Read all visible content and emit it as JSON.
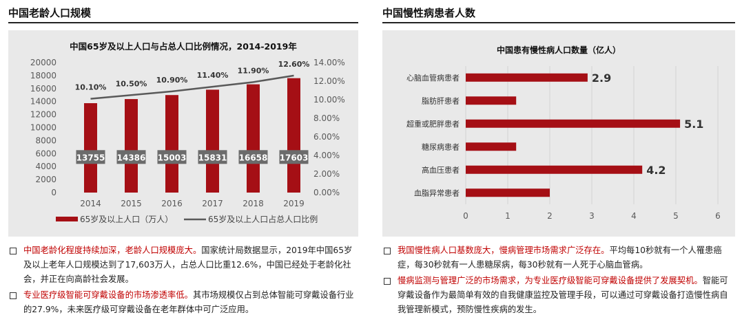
{
  "left": {
    "section_title": "中国老龄人口规模",
    "bullets": [
      {
        "highlight": "中国老龄化程度持续加深，老龄人口规模庞大。",
        "text": "国家统计局数据显示，2019年中国65岁及以上老年人口规模达到了17,603万人，占总人口比重12.6%，中国已经处于老龄化社会，并正在向高龄社会发展。"
      },
      {
        "highlight": "专业医疗级智能可穿戴设备的市场渗透率低。",
        "text": "其市场规模仅占到总体智能可穿戴设备行业的27.9%，未来医疗级可穿戴设备在老年群体中可广泛应用。"
      }
    ]
  },
  "right": {
    "section_title": "中国慢性病患者人数",
    "bullets": [
      {
        "highlight": "我国慢性病人口基数庞大，慢病管理市场需求广泛存在。",
        "text": "平均每10秒就有一个人罹患癌症，每30秒就有一人患糖尿病，每30秒就有一人死于心脑血管病。"
      },
      {
        "highlight": "慢病监测与管理广泛的市场需求，为专业医疗级智能可穿戴设备提供了发展契机。",
        "text": "智能可穿戴设备作为最简单有效的自我健康监控及管理手段，可以通过可穿戴设备打造慢性病自我管理新模式，预防慢性疾病的发生。"
      }
    ]
  },
  "colors": {
    "bar": "#a50f15",
    "line": "#595959",
    "label_bg": "#6b6b6b",
    "panel_bg": "#e9e9e9",
    "highlight": "#c00000"
  },
  "chart_data": [
    {
      "type": "bar",
      "title": "中国65岁及以上人口与占总人口比例情况，2014-2019年",
      "categories": [
        "2014",
        "2015",
        "2016",
        "2017",
        "2018",
        "2019"
      ],
      "series": [
        {
          "name": "65岁及以上人口（万人）",
          "type": "bar",
          "axis": "left",
          "values": [
            13755,
            14386,
            15003,
            15831,
            16658,
            17603
          ]
        },
        {
          "name": "65岁及以上人口占总人口比例",
          "type": "line",
          "axis": "right",
          "values": [
            10.1,
            10.5,
            10.9,
            11.4,
            11.9,
            12.6
          ],
          "labels": [
            "10.10%",
            "10.50%",
            "10.90%",
            "11.40%",
            "11.90%",
            "12.60%"
          ]
        }
      ],
      "ylim": [
        0,
        20000
      ],
      "yticks": [
        "0",
        "2000",
        "4000",
        "6000",
        "8000",
        "10000",
        "12000",
        "14000",
        "16000",
        "18000",
        "20000"
      ],
      "y2lim": [
        0,
        14
      ],
      "y2ticks": [
        "0.00%",
        "2.00%",
        "4.00%",
        "6.00%",
        "8.00%",
        "10.00%",
        "12.00%",
        "14.00%"
      ],
      "legend": "bottom",
      "grid": false
    },
    {
      "type": "bar",
      "orientation": "horizontal",
      "title": "中国患有慢性病人口数量（亿人）",
      "categories": [
        "心脑血管病患者",
        "脂肪肝患者",
        "超重或肥胖患者",
        "糖尿病患者",
        "高血压患者",
        "血脂异常患者"
      ],
      "values": [
        2.9,
        1.2,
        5.1,
        1.2,
        4.2,
        2.0
      ],
      "data_labels": [
        "2.9",
        "",
        "5.1",
        "",
        "4.2",
        ""
      ],
      "xlim": [
        0,
        6
      ],
      "xticks": [
        "0",
        "1",
        "2",
        "3",
        "4",
        "5",
        "6"
      ],
      "grid": true
    }
  ]
}
